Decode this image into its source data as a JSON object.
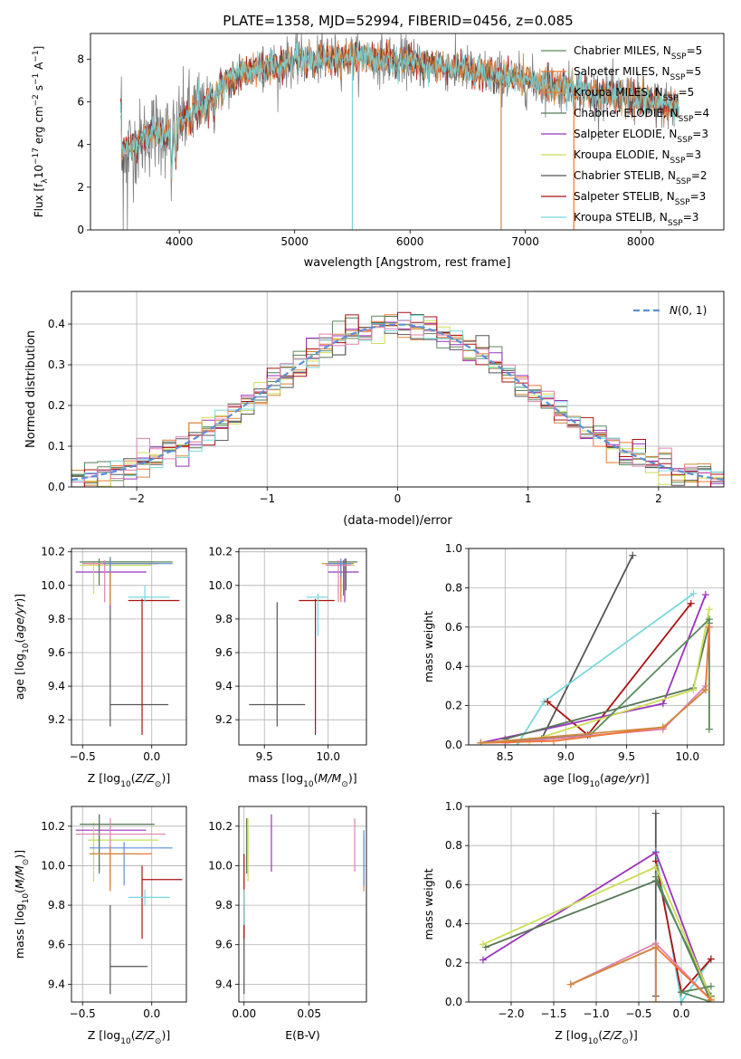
{
  "title": "PLATE=1358, MJD=52994, FIBERID=0456, z=0.085",
  "colors": {
    "chab_miles": "#5a8a5a",
    "salp_miles": "#ee7733",
    "krou_miles": "#d08840",
    "chab_elodie": "#557755",
    "salp_elodie": "#9933bb",
    "krou_elodie": "#ccdd55",
    "chab_stelib": "#555555",
    "salp_stelib": "#aa1111",
    "krou_stelib": "#77d8dd",
    "pink": "#e080b0",
    "gauss": "#5b8fd6"
  },
  "chart_data": [
    {
      "id": "spectrum",
      "type": "line",
      "title": "PLATE=1358, MJD=52994, FIBERID=0456, z=0.085",
      "xlabel": "wavelength [Angstrom, rest frame]",
      "ylabel": "Flux [f_λ 10^-17 erg cm^-2 s^-1 A^-1]",
      "xlim": [
        3230,
        8720
      ],
      "ylim": [
        0,
        9.2
      ],
      "xticks": [
        4000,
        5000,
        6000,
        7000,
        8000
      ],
      "yticks": [
        0,
        2,
        4,
        6,
        8
      ],
      "legend": [
        "Chabrier MILES, N_SSP=5",
        "Salpeter MILES, N_SSP=5",
        "Kroupa MILES, N_SSP=5",
        "Chabrier ELODIE, N_SSP=4",
        "Salpeter ELODIE, N_SSP=3",
        "Kroupa ELODIE, N_SSP=3",
        "Chabrier STELIB, N_SSP=2",
        "Salpeter STELIB, N_SSP=3",
        "Kroupa STELIB, N_SSP=3"
      ],
      "legend_colors": [
        "chab_miles",
        "salp_miles",
        "krou_miles",
        "chab_elodie",
        "salp_elodie",
        "krou_elodie",
        "chab_stelib",
        "salp_stelib",
        "krou_stelib"
      ],
      "legend_location": "top-right",
      "continuum": [
        [
          3500,
          3.7
        ],
        [
          3600,
          3.9
        ],
        [
          3700,
          4.3
        ],
        [
          3800,
          4.7
        ],
        [
          3900,
          4.4
        ],
        [
          4000,
          5.0
        ],
        [
          4100,
          5.5
        ],
        [
          4200,
          5.8
        ],
        [
          4300,
          6.3
        ],
        [
          4400,
          6.8
        ],
        [
          4500,
          7.2
        ],
        [
          4700,
          7.6
        ],
        [
          5000,
          7.9
        ],
        [
          5500,
          8.1
        ],
        [
          6000,
          7.9
        ],
        [
          6500,
          7.5
        ],
        [
          7000,
          7.0
        ],
        [
          7500,
          6.5
        ],
        [
          8000,
          6.1
        ],
        [
          8300,
          5.8
        ]
      ],
      "drops": [
        [
          5500,
          "krou_stelib"
        ],
        [
          6790,
          "krou_miles"
        ],
        [
          7420,
          "salp_miles"
        ]
      ],
      "grid": false
    },
    {
      "id": "residuals",
      "type": "histogram",
      "xlabel": "(data-model)/error",
      "ylabel": "Normed distribution",
      "xlim": [
        -2.5,
        2.5
      ],
      "ylim": [
        0,
        0.48
      ],
      "xticks": [
        -2,
        -1,
        0,
        1,
        2
      ],
      "yticks": [
        0.0,
        0.1,
        0.2,
        0.3,
        0.4
      ],
      "bin_width": 0.1,
      "legend": [
        "N(0,1)"
      ],
      "legend_location": "top-right",
      "grid": true
    },
    {
      "id": "age_vs_Z",
      "type": "scatter",
      "xlabel": "Z [log10(Z/Z⊙)]",
      "ylabel": "age  [log10(age/yr)]",
      "xlim": [
        -0.58,
        0.25
      ],
      "ylim": [
        9.05,
        10.22
      ],
      "xticks": [
        -0.5,
        0.0
      ],
      "yticks": [
        9.2,
        9.4,
        9.6,
        9.8,
        10.0,
        10.2
      ],
      "points": [
        {
          "c": "chab_stelib",
          "x": -0.3,
          "y": 9.29,
          "xe": [
            -0.3,
            0.12
          ],
          "ye": [
            9.16,
            9.9
          ]
        },
        {
          "c": "salp_stelib",
          "x": -0.07,
          "y": 9.91,
          "xe": [
            -0.17,
            0.2
          ],
          "ye": [
            9.11,
            9.92
          ]
        },
        {
          "c": "krou_stelib",
          "x": -0.05,
          "y": 9.93,
          "xe": [
            -0.17,
            0.13
          ],
          "ye": [
            9.9,
            10.0
          ]
        },
        {
          "c": "salp_elodie",
          "x": -0.3,
          "y": 10.08,
          "xe": [
            -0.55,
            -0.04
          ],
          "ye": [
            9.87,
            10.16
          ]
        },
        {
          "c": "krou_elodie",
          "x": -0.42,
          "y": 10.12,
          "xe": [
            -0.52,
            0.0
          ],
          "ye": [
            9.95,
            10.14
          ]
        },
        {
          "c": "chab_elodie",
          "x": -0.38,
          "y": 10.14,
          "xe": [
            -0.52,
            0.02
          ],
          "ye": [
            10.0,
            10.16
          ]
        },
        {
          "c": "chab_miles",
          "x": -0.3,
          "y": 10.14,
          "xe": [
            -0.45,
            0.15
          ],
          "ye": [
            9.99,
            10.17
          ]
        },
        {
          "c": "salp_miles",
          "x": -0.3,
          "y": 10.13,
          "xe": [
            -0.5,
            0.05
          ],
          "ye": [
            9.9,
            10.14
          ]
        },
        {
          "c": "krou_miles",
          "x": -0.3,
          "y": 10.13,
          "xe": [
            -0.45,
            0.0
          ],
          "ye": [
            9.88,
            10.14
          ]
        },
        {
          "c": "pink",
          "x": -0.34,
          "y": 10.13,
          "xe": [
            -0.5,
            -0.25
          ],
          "ye": [
            9.9,
            10.15
          ]
        },
        {
          "c": "gauss",
          "x": -0.3,
          "y": 10.13,
          "xe": [
            -0.35,
            0.15
          ],
          "ye": [
            10.08,
            10.16
          ]
        }
      ],
      "grid": true
    },
    {
      "id": "age_vs_mass",
      "type": "scatter",
      "xlabel": "mass [log10(M/M⊙)]",
      "ylabel": "",
      "xlim": [
        9.3,
        10.3
      ],
      "ylim": [
        9.05,
        10.22
      ],
      "xticks": [
        9.5,
        10.0
      ],
      "yticks": [
        9.2,
        9.4,
        9.6,
        9.8,
        10.0,
        10.2
      ],
      "points": [
        {
          "c": "chab_stelib",
          "x": 9.6,
          "y": 9.29,
          "xe": [
            9.38,
            9.82
          ],
          "ye": [
            9.16,
            9.9
          ]
        },
        {
          "c": "salp_stelib",
          "x": 9.9,
          "y": 9.91,
          "xe": [
            9.77,
            10.05
          ],
          "ye": [
            9.11,
            9.92
          ]
        },
        {
          "c": "krou_stelib",
          "x": 9.92,
          "y": 9.93,
          "xe": [
            9.83,
            10.0
          ],
          "ye": [
            9.7,
            9.95
          ]
        },
        {
          "c": "salp_elodie",
          "x": 10.13,
          "y": 10.08,
          "xe": [
            10.0,
            10.24
          ],
          "ye": [
            9.9,
            10.16
          ]
        },
        {
          "c": "krou_elodie",
          "x": 10.12,
          "y": 10.12,
          "xe": [
            10.0,
            10.21
          ],
          "ye": [
            9.95,
            10.14
          ]
        },
        {
          "c": "chab_elodie",
          "x": 10.14,
          "y": 10.14,
          "xe": [
            10.0,
            10.23
          ],
          "ye": [
            9.97,
            10.16
          ]
        },
        {
          "c": "chab_miles",
          "x": 10.12,
          "y": 10.13,
          "xe": [
            10.03,
            10.2
          ],
          "ye": [
            9.94,
            10.15
          ]
        },
        {
          "c": "salp_miles",
          "x": 10.1,
          "y": 10.13,
          "xe": [
            9.98,
            10.18
          ],
          "ye": [
            9.9,
            10.14
          ]
        },
        {
          "c": "krou_miles",
          "x": 10.1,
          "y": 10.13,
          "xe": [
            9.95,
            10.2
          ],
          "ye": [
            9.92,
            10.14
          ]
        },
        {
          "c": "pink",
          "x": 10.08,
          "y": 10.12,
          "xe": [
            9.98,
            10.18
          ],
          "ye": [
            9.9,
            10.15
          ]
        },
        {
          "c": "gauss",
          "x": 10.1,
          "y": 10.13,
          "xe": [
            10.0,
            10.18
          ],
          "ye": [
            10.05,
            10.16
          ]
        }
      ],
      "grid": true
    },
    {
      "id": "massweight_vs_age",
      "type": "line",
      "xlabel": "age  [log10(age/yr)]",
      "ylabel": "mass weight",
      "xlim": [
        8.2,
        10.3
      ],
      "ylim": [
        0,
        1.0
      ],
      "xticks": [
        8.5,
        9.0,
        9.5,
        10.0
      ],
      "yticks": [
        0.0,
        0.2,
        0.4,
        0.6,
        0.8,
        1.0
      ],
      "series": [
        {
          "c": "chab_stelib",
          "x": [
            8.8,
            9.55
          ],
          "y": [
            0.03,
            0.965
          ]
        },
        {
          "c": "krou_stelib",
          "x": [
            8.6,
            8.82,
            10.05
          ],
          "y": [
            0.0,
            0.22,
            0.77
          ]
        },
        {
          "c": "salp_stelib",
          "x": [
            8.85,
            9.18,
            10.03
          ],
          "y": [
            0.22,
            0.05,
            0.72
          ]
        },
        {
          "c": "salp_elodie",
          "x": [
            8.3,
            9.8,
            10.15
          ],
          "y": [
            0.01,
            0.21,
            0.765
          ]
        },
        {
          "c": "chab_elodie",
          "x": [
            8.5,
            10.05,
            10.18
          ],
          "y": [
            0.03,
            0.29,
            0.62
          ]
        },
        {
          "c": "krou_elodie",
          "x": [
            8.7,
            10.05,
            10.18
          ],
          "y": [
            0.02,
            0.28,
            0.69
          ]
        },
        {
          "c": "chab_miles",
          "x": [
            8.3,
            9.2,
            10.18,
            10.18
          ],
          "y": [
            0.01,
            0.05,
            0.64,
            0.08
          ]
        },
        {
          "c": "pink",
          "x": [
            8.5,
            9.8,
            10.15,
            10.18
          ],
          "y": [
            0.01,
            0.08,
            0.3,
            0.6
          ]
        },
        {
          "c": "salp_miles",
          "x": [
            8.3,
            8.9,
            9.8,
            10.15,
            10.18
          ],
          "y": [
            0.01,
            0.02,
            0.09,
            0.28,
            0.6
          ]
        },
        {
          "c": "krou_miles",
          "x": [
            8.3,
            9.8,
            10.15
          ],
          "y": [
            0.01,
            0.09,
            0.28
          ]
        }
      ],
      "grid": true
    },
    {
      "id": "mass_vs_Z",
      "type": "scatter",
      "xlabel": "Z [log10(Z/Z⊙)]",
      "ylabel": "mass [log10(M/M⊙)]",
      "xlim": [
        -0.58,
        0.25
      ],
      "ylim": [
        9.31,
        10.3
      ],
      "xticks": [
        -0.5,
        0.0
      ],
      "yticks": [
        9.4,
        9.6,
        9.8,
        10.0,
        10.2
      ],
      "points": [
        {
          "c": "chab_stelib",
          "x": -0.3,
          "y": 9.49,
          "xe": [
            -0.3,
            -0.03
          ],
          "ye": [
            9.35,
            9.8
          ]
        },
        {
          "c": "salp_stelib",
          "x": -0.07,
          "y": 9.93,
          "xe": [
            -0.07,
            0.22
          ],
          "ye": [
            9.63,
            10.0
          ]
        },
        {
          "c": "krou_stelib",
          "x": -0.05,
          "y": 9.84,
          "xe": [
            -0.17,
            0.13
          ],
          "ye": [
            9.8,
            9.88
          ]
        },
        {
          "c": "salp_elodie",
          "x": -0.38,
          "y": 10.18,
          "xe": [
            -0.55,
            -0.04
          ],
          "ye": [
            9.97,
            10.26
          ]
        },
        {
          "c": "krou_elodie",
          "x": -0.42,
          "y": 10.13,
          "xe": [
            -0.46,
            0.05
          ],
          "ye": [
            9.92,
            10.22
          ]
        },
        {
          "c": "chab_elodie",
          "x": -0.38,
          "y": 10.21,
          "xe": [
            -0.52,
            0.02
          ],
          "ye": [
            9.96,
            10.26
          ]
        },
        {
          "c": "pink",
          "x": -0.3,
          "y": 10.16,
          "xe": [
            -0.55,
            0.1
          ],
          "ye": [
            9.9,
            10.24
          ]
        },
        {
          "c": "gauss",
          "x": -0.2,
          "y": 10.09,
          "xe": [
            -0.45,
            0.15
          ],
          "ye": [
            9.9,
            10.12
          ]
        },
        {
          "c": "salp_miles",
          "x": -0.3,
          "y": 10.06,
          "xe": [
            -0.45,
            0.0
          ],
          "ye": [
            9.88,
            10.08
          ]
        },
        {
          "c": "krou_miles",
          "x": -0.3,
          "y": 10.06,
          "xe": [
            -0.45,
            -0.1
          ],
          "ye": [
            9.87,
            10.1
          ]
        }
      ],
      "grid": true
    },
    {
      "id": "mass_vs_EBV",
      "type": "scatter",
      "xlabel": "E(B-V)",
      "ylabel": "",
      "xlim": [
        -0.004,
        0.094
      ],
      "ylim": [
        9.31,
        10.3
      ],
      "xticks": [
        0.0,
        0.05
      ],
      "yticks": [
        9.4,
        9.6,
        9.8,
        10.0,
        10.2
      ],
      "points": [
        {
          "c": "chab_stelib",
          "x": 0.0,
          "y": 9.49,
          "xe": [
            0.0,
            0.0
          ],
          "ye": [
            9.35,
            9.8
          ]
        },
        {
          "c": "salp_stelib",
          "x": 0.0,
          "y": 9.93,
          "xe": [
            0.0,
            0.0
          ],
          "ye": [
            9.63,
            10.06
          ]
        },
        {
          "c": "krou_stelib",
          "x": 0.0,
          "y": 9.84,
          "xe": [
            0.0,
            0.0
          ],
          "ye": [
            9.7,
            9.88
          ]
        },
        {
          "c": "krou_elodie",
          "x": 0.003,
          "y": 10.13,
          "xe": [
            0.003,
            0.003
          ],
          "ye": [
            9.92,
            10.24
          ]
        },
        {
          "c": "chab_elodie",
          "x": 0.002,
          "y": 10.1,
          "xe": [
            0.002,
            0.002
          ],
          "ye": [
            9.96,
            10.24
          ]
        },
        {
          "c": "salp_elodie",
          "x": 0.021,
          "y": 10.18,
          "xe": [
            0.021,
            0.021
          ],
          "ye": [
            9.97,
            10.26
          ]
        },
        {
          "c": "pink",
          "x": 0.085,
          "y": 10.16,
          "xe": [
            0.085,
            0.085
          ],
          "ye": [
            9.97,
            10.24
          ]
        },
        {
          "c": "krou_miles",
          "x": 0.092,
          "y": 10.06,
          "xe": [
            0.092,
            0.092
          ],
          "ye": [
            9.87,
            10.15
          ]
        },
        {
          "c": "gauss",
          "x": 0.092,
          "y": 10.09,
          "xe": [
            0.092,
            0.092
          ],
          "ye": [
            9.9,
            10.18
          ]
        }
      ],
      "grid": true
    },
    {
      "id": "massweight_vs_Z",
      "type": "line",
      "xlabel": "Z [log10(Z/Z⊙)]",
      "ylabel": "mass weight",
      "xlim": [
        -2.5,
        0.5
      ],
      "ylim": [
        0,
        1.0
      ],
      "xticks": [
        -2.0,
        -1.5,
        -1.0,
        -0.5,
        0.0
      ],
      "yticks": [
        0.0,
        0.2,
        0.4,
        0.6,
        0.8,
        1.0
      ],
      "series": [
        {
          "c": "chab_stelib",
          "x": [
            -0.3,
            -0.3
          ],
          "y": [
            0.03,
            0.965
          ]
        },
        {
          "c": "krou_stelib",
          "x": [
            -0.3,
            0.0,
            0.35
          ],
          "y": [
            0.77,
            0.0,
            0.22
          ]
        },
        {
          "c": "salp_stelib",
          "x": [
            -0.3,
            0.0,
            0.35
          ],
          "y": [
            0.72,
            0.05,
            0.22
          ]
        },
        {
          "c": "salp_elodie",
          "x": [
            -2.33,
            -0.3,
            0.35
          ],
          "y": [
            0.215,
            0.765,
            0.01
          ]
        },
        {
          "c": "chab_elodie",
          "x": [
            -2.3,
            -0.3,
            0.35
          ],
          "y": [
            0.28,
            0.62,
            0.03
          ]
        },
        {
          "c": "krou_elodie",
          "x": [
            -2.33,
            -0.3,
            0.35
          ],
          "y": [
            0.295,
            0.69,
            0.02
          ]
        },
        {
          "c": "chab_miles",
          "x": [
            -0.3,
            0.35,
            0.0,
            0.35
          ],
          "y": [
            0.64,
            0.0,
            0.05,
            0.08
          ]
        },
        {
          "c": "pink",
          "x": [
            -1.3,
            -0.3,
            0.35
          ],
          "y": [
            0.09,
            0.3,
            0.01
          ]
        },
        {
          "c": "salp_miles",
          "x": [
            -1.3,
            -0.3,
            0.35
          ],
          "y": [
            0.09,
            0.28,
            0.01
          ]
        },
        {
          "c": "krou_miles",
          "x": [
            -1.3,
            -0.3,
            -0.3
          ],
          "y": [
            0.09,
            0.28,
            0.0
          ]
        }
      ],
      "grid": true
    }
  ]
}
